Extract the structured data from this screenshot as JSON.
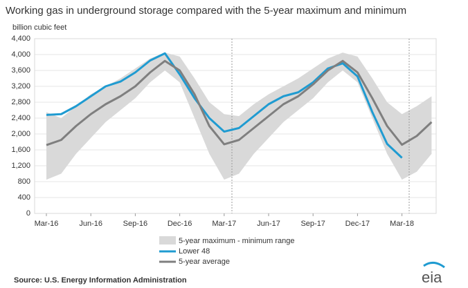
{
  "chart_data": {
    "type": "line",
    "title": "Working gas in underground  storage compared with the 5-year maximum and minimum",
    "y_label": "billion cubic feet",
    "source": "Source:  U.S. Energy Information Administration",
    "logo": "eia",
    "categories": [
      "Mar-16",
      null,
      null,
      "Jun-16",
      null,
      null,
      "Sep-16",
      null,
      null,
      "Dec-16",
      null,
      null,
      "Mar-17",
      null,
      null,
      "Jun-17",
      null,
      null,
      "Sep-17",
      null,
      null,
      "Dec-17",
      null,
      null,
      "Mar-18",
      null,
      null
    ],
    "range": {
      "name": "5-year maximum - minimum range",
      "color": "#d9d9d9",
      "high": [
        2550,
        2400,
        2700,
        3000,
        3200,
        3400,
        3650,
        3900,
        4050,
        3950,
        3400,
        2800,
        2500,
        2450,
        2750,
        3000,
        3200,
        3400,
        3650,
        3900,
        4050,
        3950,
        3400,
        2800,
        2500,
        2700,
        2950
      ],
      "low": [
        850,
        1000,
        1500,
        1900,
        2300,
        2600,
        2900,
        3300,
        3600,
        3300,
        2400,
        1500,
        850,
        1000,
        1500,
        1900,
        2300,
        2600,
        2900,
        3300,
        3600,
        3300,
        2400,
        1500,
        850,
        1050,
        1500
      ]
    },
    "series": [
      {
        "name": "Lower 48",
        "color": "#1f9bd1",
        "values": [
          2480,
          2500,
          2700,
          2950,
          3200,
          3320,
          3550,
          3850,
          4030,
          3500,
          2900,
          2400,
          2060,
          2150,
          2450,
          2750,
          2950,
          3050,
          3300,
          3650,
          3780,
          3450,
          2550,
          1750,
          1400,
          null,
          null
        ]
      },
      {
        "name": "5-year average",
        "color": "#7f7f7f",
        "values": [
          1720,
          1850,
          2200,
          2500,
          2750,
          2950,
          3200,
          3550,
          3840,
          3600,
          3000,
          2200,
          1740,
          1850,
          2150,
          2450,
          2750,
          2950,
          3250,
          3600,
          3840,
          3550,
          2900,
          2200,
          1730,
          1950,
          2300
        ]
      }
    ],
    "ylim": [
      0,
      4400
    ],
    "yticks": [
      0,
      400,
      800,
      {
        "value": 1200,
        "label": "1,200"
      },
      {
        "value": 1600,
        "label": "1,600"
      },
      {
        "value": 2000,
        "label": "2,000"
      },
      {
        "value": 2400,
        "label": "2,400"
      },
      {
        "value": 2800,
        "label": "2,800"
      },
      {
        "value": 3200,
        "label": "3,200"
      },
      {
        "value": 3600,
        "label": "3,600"
      },
      {
        "value": 4000,
        "label": "4,000"
      },
      {
        "value": 4400,
        "label": "4,400"
      }
    ],
    "grid": true
  }
}
